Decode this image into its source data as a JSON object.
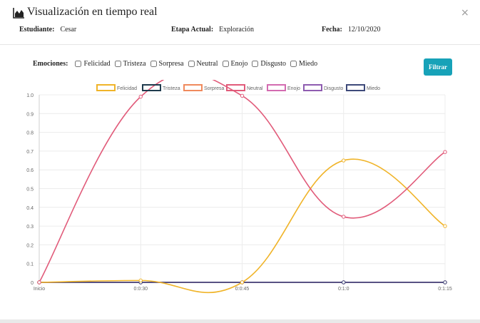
{
  "modal": {
    "title": "Visualización en tiempo real",
    "close_symbol": "×",
    "title_icon": "area-chart-icon"
  },
  "info": {
    "student_label": "Estudiante:",
    "student_value": "Cesar",
    "stage_label": "Etapa Actual:",
    "stage_value": "Exploración",
    "date_label": "Fecha:",
    "date_value": "12/10/2020"
  },
  "filters": {
    "label": "Emociones:",
    "options": [
      "Felicidad",
      "Tristeza",
      "Sorpresa",
      "Neutral",
      "Enojo",
      "Disgusto",
      "Miedo"
    ],
    "button_label": "Filtrar",
    "button_color": "#17a2b8"
  },
  "chart_data": {
    "type": "line",
    "x": [
      "Inicio",
      "0:0:30",
      "0:0:45",
      "0:1:0",
      "0:1:15"
    ],
    "ylim": [
      0,
      1
    ],
    "yticks": [
      "0",
      "0.1",
      "0.2",
      "0.3",
      "0.4",
      "0.5",
      "0.6",
      "0.7",
      "0.8",
      "0.9",
      "1.0"
    ],
    "grid": true,
    "legend_position": "top",
    "series": [
      {
        "name": "Felicidad",
        "color": "#f0b429",
        "values": [
          0,
          0.01,
          0,
          0.65,
          0.3
        ]
      },
      {
        "name": "Tristeza",
        "color": "#1f3b4d",
        "values": [
          0,
          0,
          0,
          0,
          0
        ]
      },
      {
        "name": "Sorpresa",
        "color": "#f08a5d",
        "values": [
          0,
          0,
          0,
          0,
          0
        ]
      },
      {
        "name": "Neutral",
        "color": "#e15b7a",
        "values": [
          0,
          0.99,
          0.995,
          0.35,
          0.695
        ]
      },
      {
        "name": "Enojo",
        "color": "#d36bb0",
        "values": [
          0,
          0,
          0,
          0,
          0
        ]
      },
      {
        "name": "Disgusto",
        "color": "#8e5cb0",
        "values": [
          0,
          0,
          0,
          0,
          0
        ]
      },
      {
        "name": "Miedo",
        "color": "#3e4a7a",
        "values": [
          0,
          0,
          0,
          0,
          0
        ]
      }
    ]
  }
}
